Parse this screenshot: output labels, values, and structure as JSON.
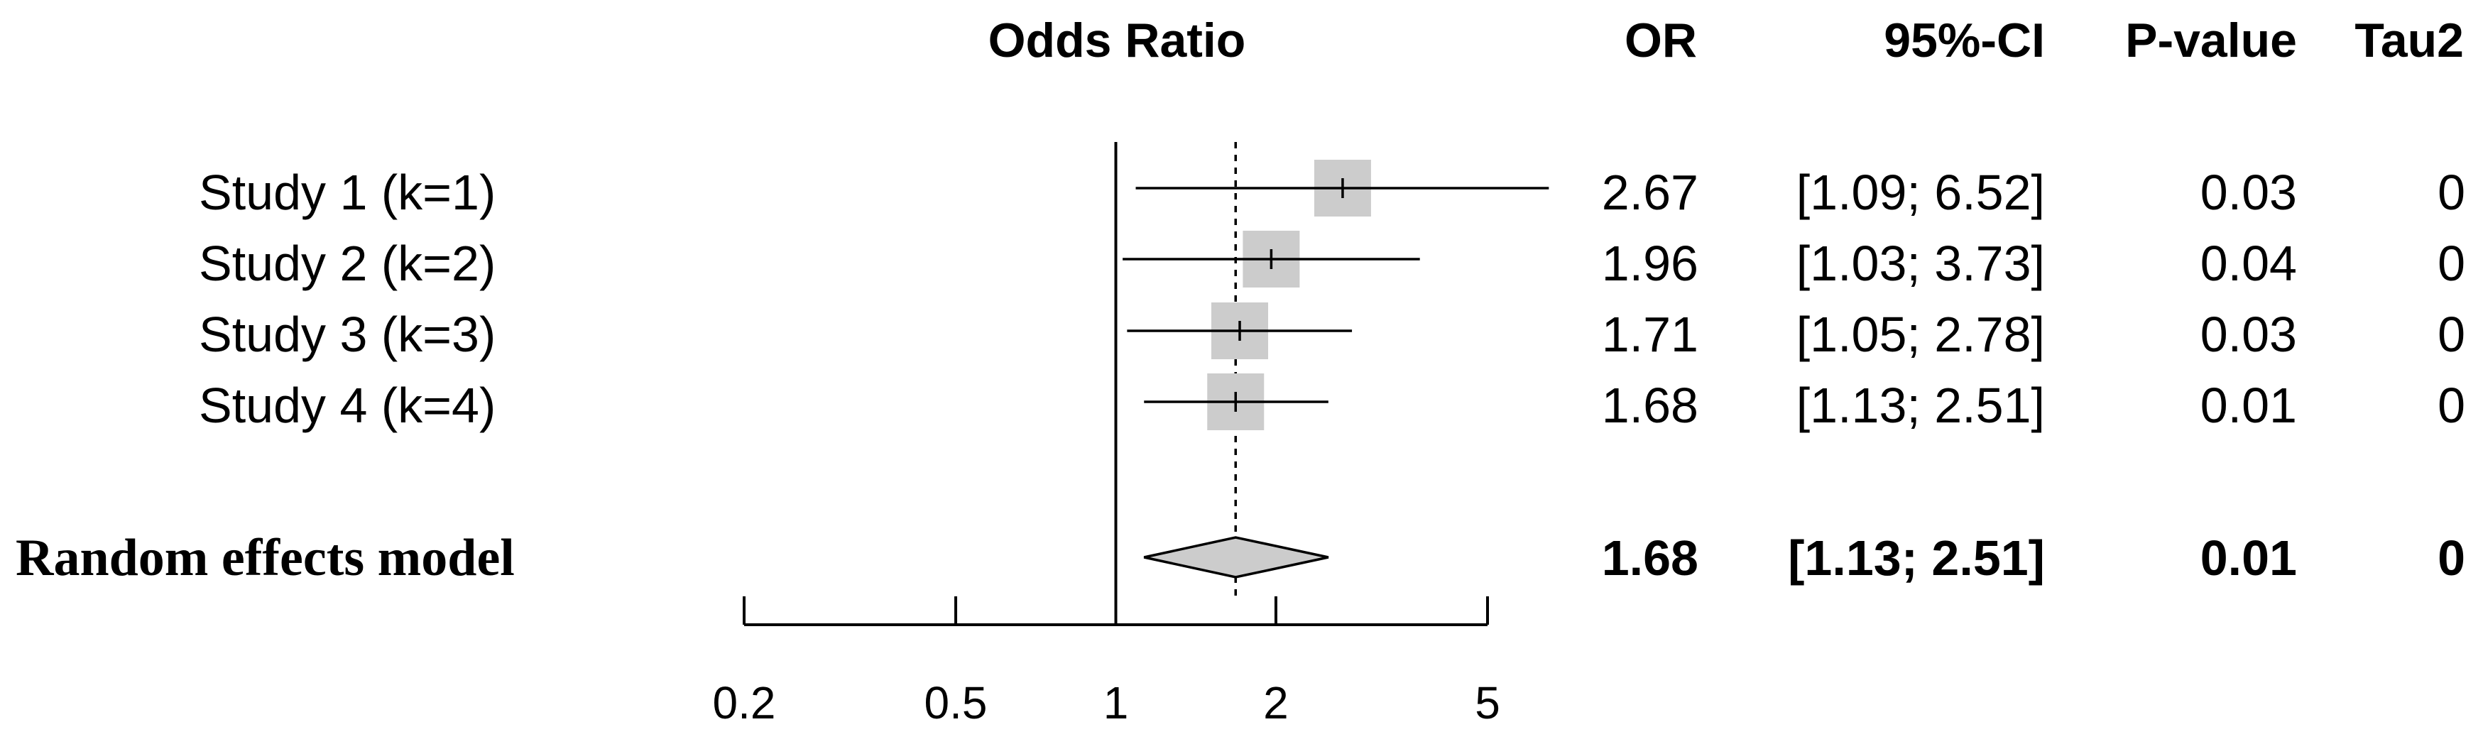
{
  "chart_data": {
    "type": "forest",
    "title": "",
    "xlabel": "",
    "x_scale": "log",
    "columns": {
      "effect_header": "Odds Ratio",
      "or_header": "OR",
      "ci_header": "95%-CI",
      "p_header": "P-value",
      "tau_header": "Tau2"
    },
    "null_value": 1,
    "pooled_reference": 1.68,
    "x_ticks": [
      0.2,
      0.5,
      1,
      2,
      5
    ],
    "x_tick_labels": [
      "0.2",
      "0.5",
      "1",
      "2",
      "5"
    ],
    "xlim": [
      0.2,
      5
    ],
    "studies": [
      {
        "label": "Study 1 (k=1)",
        "or": 2.67,
        "ci_low": 1.09,
        "ci_high": 6.52,
        "or_text": "2.67",
        "ci_text": "[1.09; 6.52]",
        "p_text": "0.03",
        "tau_text": "0"
      },
      {
        "label": "Study 2 (k=2)",
        "or": 1.96,
        "ci_low": 1.03,
        "ci_high": 3.73,
        "or_text": "1.96",
        "ci_text": "[1.03; 3.73]",
        "p_text": "0.04",
        "tau_text": "0"
      },
      {
        "label": "Study 3 (k=3)",
        "or": 1.71,
        "ci_low": 1.05,
        "ci_high": 2.78,
        "or_text": "1.71",
        "ci_text": "[1.05; 2.78]",
        "p_text": "0.03",
        "tau_text": "0"
      },
      {
        "label": "Study 4 (k=4)",
        "or": 1.68,
        "ci_low": 1.13,
        "ci_high": 2.51,
        "or_text": "1.68",
        "ci_text": "[1.13; 2.51]",
        "p_text": "0.01",
        "tau_text": "0"
      }
    ],
    "model": {
      "label": "Random effects model",
      "or": 1.68,
      "ci_low": 1.13,
      "ci_high": 2.51,
      "or_text": "1.68",
      "ci_text": "[1.13; 2.51]",
      "p_text": "0.01",
      "tau_text": "0"
    },
    "colors": {
      "square": "#cccccc",
      "diamond": "#cccccc",
      "line": "#000000"
    }
  }
}
